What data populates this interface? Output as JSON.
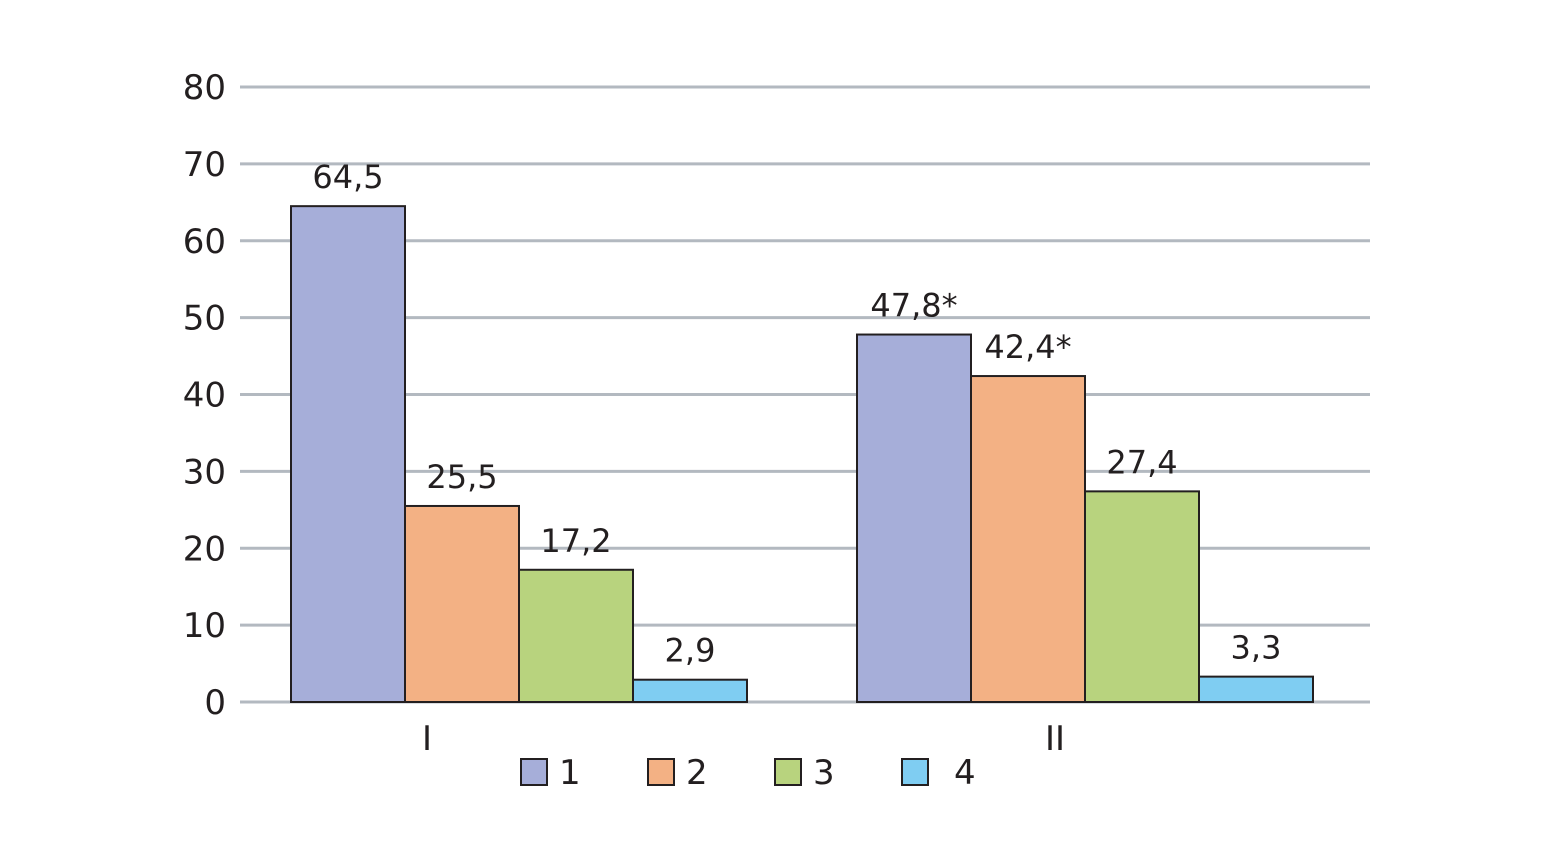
{
  "chart_data": {
    "type": "bar",
    "categories": [
      "I",
      "II"
    ],
    "series": [
      {
        "name": "1",
        "color": "#a6aed9",
        "values": [
          64.5,
          47.8
        ],
        "labels": [
          "64,5",
          "47,8*"
        ]
      },
      {
        "name": "2",
        "color": "#f3b184",
        "values": [
          25.5,
          42.4
        ],
        "labels": [
          "25,5",
          "42,4*"
        ]
      },
      {
        "name": "3",
        "color": "#b8d37e",
        "values": [
          17.2,
          27.4
        ],
        "labels": [
          "17,2",
          "27,4"
        ]
      },
      {
        "name": "4",
        "color": "#7fcdf2",
        "values": [
          2.9,
          3.3
        ],
        "labels": [
          "2,9",
          "3,3"
        ]
      }
    ],
    "yticks": [
      "0",
      "10",
      "20",
      "30",
      "40",
      "50",
      "60",
      "70",
      "80"
    ],
    "ylim": [
      0,
      80
    ],
    "grid": true,
    "legend_position": "bottom",
    "title": "",
    "xlabel": "",
    "ylabel": ""
  }
}
